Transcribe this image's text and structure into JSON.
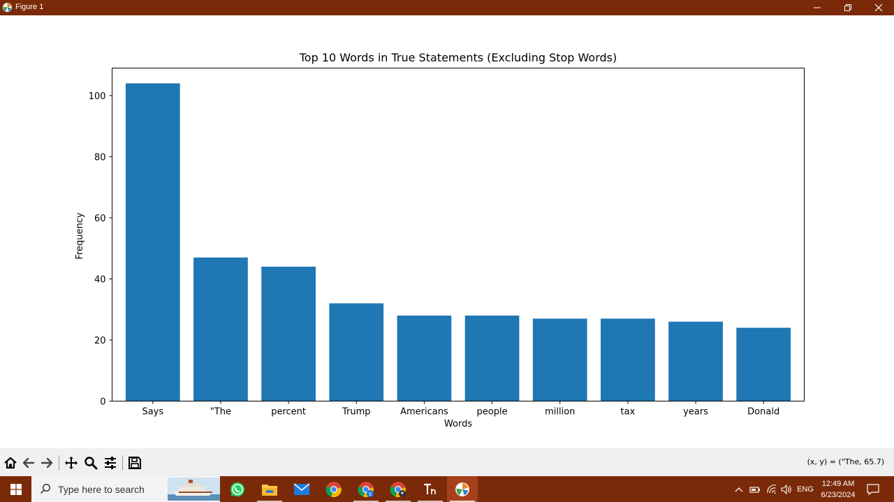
{
  "window": {
    "title": "Figure 1",
    "app_icon": "matplotlib-icon",
    "controls": [
      "minimize-icon",
      "restore-icon",
      "close-icon"
    ]
  },
  "chart_data": {
    "type": "bar",
    "title": "Top 10 Words in True Statements (Excluding Stop Words)",
    "xlabel": "Words",
    "ylabel": "Frequency",
    "categories": [
      "Says",
      "\"The",
      "percent",
      "Trump",
      "Americans",
      "people",
      "million",
      "tax",
      "years",
      "Donald"
    ],
    "values": [
      104,
      47,
      44,
      32,
      28,
      28,
      27,
      27,
      26,
      24
    ],
    "ylim": [
      0,
      109
    ],
    "yticks": [
      0,
      20,
      40,
      60,
      80,
      100
    ],
    "bar_color": "#1f77b4",
    "grid": false,
    "legend": "none"
  },
  "toolbar": {
    "buttons": [
      "home-icon",
      "back-icon",
      "forward-icon",
      "pan-icon",
      "zoom-icon",
      "configure-subplots-icon",
      "save-icon"
    ],
    "coords": "(x, y) = (\"The, 65.7)"
  },
  "taskbar": {
    "search_placeholder": "Type here to search",
    "apps": [
      "whatsapp-icon",
      "file-explorer-icon",
      "mail-icon",
      "chrome-icon",
      "chrome-profile-s-icon",
      "chrome-profile-icon",
      "typora-icon",
      "matplotlib-app-icon"
    ],
    "language": "ENG",
    "time": "12:49 AM",
    "date": "6/23/2024",
    "accent": "#7a2a08"
  }
}
